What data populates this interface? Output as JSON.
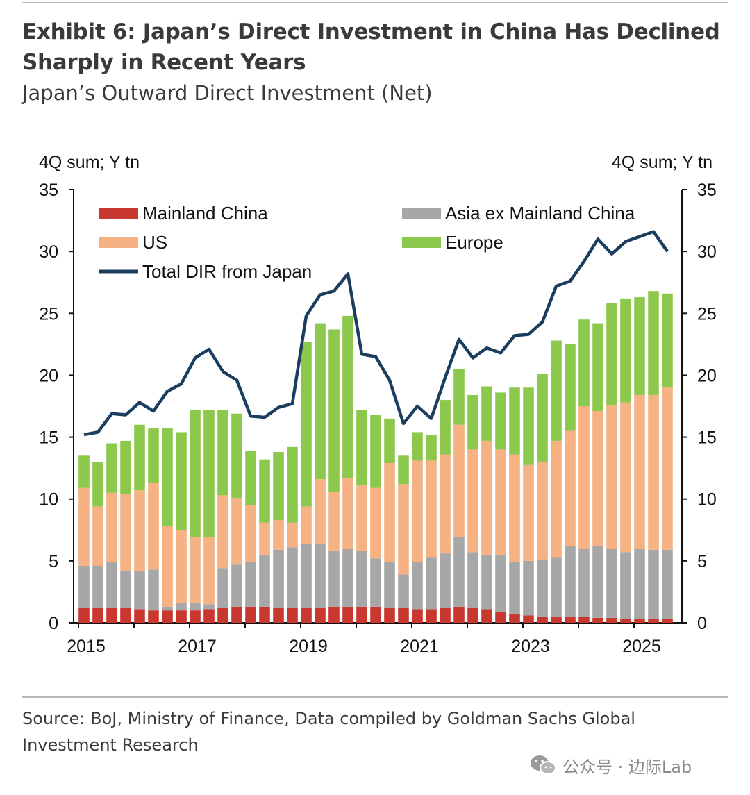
{
  "title": "Exhibit 6: Japan’s Direct Investment in China Has Declined Sharply in Recent Years",
  "subtitle": "Japan’s Outward Direct Investment (Net)",
  "source": "Source: BoJ, Ministry of Finance, Data compiled by Goldman Sachs Global Investment Research",
  "watermark": "公众号 · 边际Lab",
  "chart_data": {
    "type": "bar",
    "stacked": true,
    "y_unit_left": "4Q sum; Y tn",
    "y_unit_right": "4Q sum; Y tn",
    "ylim": [
      0,
      35
    ],
    "yticks": [
      "0",
      "5",
      "10",
      "15",
      "20",
      "25",
      "30",
      "35"
    ],
    "x_labels": [
      "2015",
      "2017",
      "2019",
      "2021",
      "2023",
      "2025"
    ],
    "x_start": "2015Q1",
    "grid": false,
    "legend": {
      "placement": "top",
      "entries": [
        "Mainland China",
        "Asia ex Mainland China",
        "US",
        "Europe",
        "Total DIR from Japan"
      ]
    },
    "colors": {
      "Mainland China": "#c8382e",
      "Asia ex Mainland China": "#a7a7a7",
      "US": "#f6b283",
      "Europe": "#8cc84b",
      "Total DIR from Japan": "#1c3e5e"
    },
    "quarters": [
      "2015Q1",
      "2015Q2",
      "2015Q3",
      "2015Q4",
      "2016Q1",
      "2016Q2",
      "2016Q3",
      "2016Q4",
      "2017Q1",
      "2017Q2",
      "2017Q3",
      "2017Q4",
      "2018Q1",
      "2018Q2",
      "2018Q3",
      "2018Q4",
      "2019Q1",
      "2019Q2",
      "2019Q3",
      "2019Q4",
      "2020Q1",
      "2020Q2",
      "2020Q3",
      "2020Q4",
      "2021Q1",
      "2021Q2",
      "2021Q3",
      "2021Q4",
      "2022Q1",
      "2022Q2",
      "2022Q3",
      "2022Q4",
      "2023Q1",
      "2023Q2",
      "2023Q3",
      "2023Q4",
      "2024Q1",
      "2024Q2",
      "2024Q3",
      "2024Q4",
      "2025Q1",
      "2025Q2",
      "2025Q3"
    ],
    "series": [
      {
        "name": "Mainland China",
        "kind": "bar",
        "values": [
          1.2,
          1.2,
          1.2,
          1.2,
          1.1,
          1.0,
          1.0,
          1.0,
          1.0,
          1.1,
          1.2,
          1.3,
          1.3,
          1.3,
          1.2,
          1.2,
          1.2,
          1.2,
          1.3,
          1.3,
          1.3,
          1.3,
          1.2,
          1.2,
          1.1,
          1.1,
          1.2,
          1.3,
          1.2,
          1.1,
          0.9,
          0.7,
          0.6,
          0.5,
          0.5,
          0.5,
          0.5,
          0.4,
          0.4,
          0.3,
          0.3,
          0.3,
          0.3
        ]
      },
      {
        "name": "Asia ex Mainland China",
        "kind": "bar",
        "values": [
          3.4,
          3.4,
          3.7,
          3.0,
          3.1,
          3.3,
          0.3,
          0.6,
          0.6,
          0.4,
          3.2,
          3.4,
          3.6,
          4.2,
          4.7,
          4.9,
          5.2,
          5.2,
          4.5,
          4.7,
          4.5,
          3.9,
          3.7,
          2.7,
          3.8,
          4.2,
          4.4,
          5.6,
          4.5,
          4.4,
          4.6,
          4.2,
          4.4,
          4.6,
          4.8,
          5.7,
          5.5,
          5.8,
          5.6,
          5.4,
          5.7,
          5.6,
          5.6
        ]
      },
      {
        "name": "US",
        "kind": "bar",
        "values": [
          6.3,
          4.8,
          5.6,
          6.2,
          6.5,
          7.0,
          6.5,
          5.9,
          5.3,
          5.4,
          5.9,
          5.4,
          4.6,
          2.6,
          2.4,
          2.0,
          3.0,
          5.2,
          4.8,
          5.7,
          5.3,
          5.7,
          8.0,
          7.3,
          8.2,
          7.8,
          8.0,
          9.1,
          8.3,
          9.2,
          8.5,
          8.7,
          7.8,
          7.9,
          9.4,
          9.3,
          11.5,
          10.9,
          11.6,
          12.1,
          12.4,
          12.5,
          13.1
        ]
      },
      {
        "name": "Europe",
        "kind": "bar",
        "values": [
          2.6,
          3.6,
          4.0,
          4.3,
          5.3,
          4.4,
          7.9,
          7.9,
          10.3,
          10.3,
          6.9,
          6.8,
          4.4,
          5.1,
          5.5,
          6.1,
          13.3,
          12.6,
          13.1,
          13.1,
          6.1,
          5.9,
          3.6,
          2.3,
          2.3,
          2.1,
          4.4,
          4.5,
          4.4,
          4.4,
          4.6,
          5.4,
          6.2,
          7.1,
          8.1,
          7.0,
          7.0,
          7.1,
          8.2,
          8.4,
          7.9,
          8.4,
          7.6
        ]
      },
      {
        "name": "Total DIR from Japan",
        "kind": "line",
        "values": [
          15.2,
          15.4,
          16.9,
          16.8,
          17.8,
          17.1,
          18.7,
          19.3,
          21.4,
          22.1,
          20.3,
          19.6,
          16.7,
          16.6,
          17.4,
          17.7,
          24.8,
          26.5,
          26.8,
          28.2,
          21.7,
          21.5,
          19.6,
          16.1,
          17.5,
          16.5,
          19.8,
          22.9,
          21.4,
          22.2,
          21.8,
          23.2,
          23.3,
          24.3,
          27.2,
          27.6,
          29.2,
          31.0,
          29.8,
          30.8,
          31.2,
          31.6,
          30.0
        ]
      }
    ]
  }
}
